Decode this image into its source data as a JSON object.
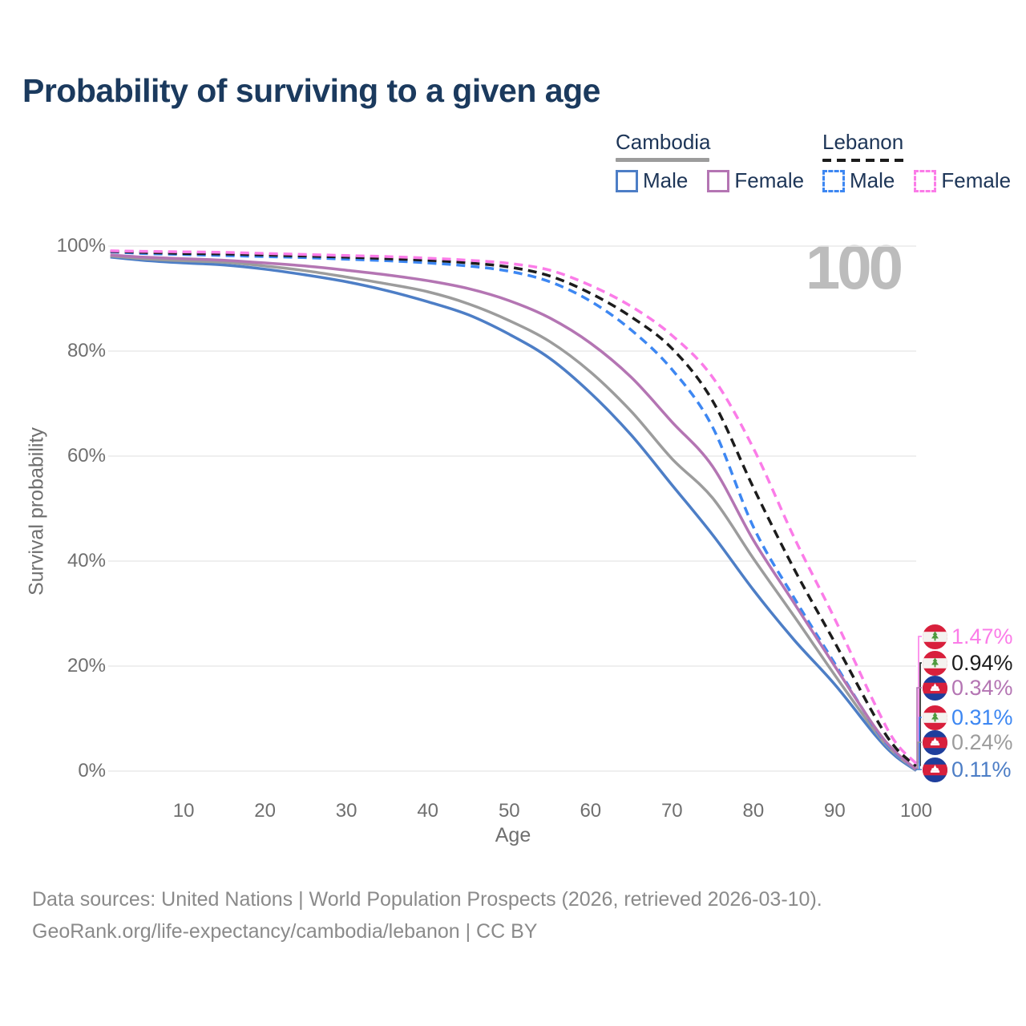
{
  "title": "Probability of surviving to a given age",
  "legend": {
    "groups": [
      {
        "country": "Cambodia",
        "style": "solid",
        "header_line_color": "#9c9c9c",
        "items": [
          {
            "label": "Male",
            "color": "#4d7ec6"
          },
          {
            "label": "Female",
            "color": "#b475b3"
          }
        ]
      },
      {
        "country": "Lebanon",
        "style": "dashed",
        "header_line_color": "#1c1c1c",
        "items": [
          {
            "label": "Male",
            "color": "#3d87f2"
          },
          {
            "label": "Female",
            "color": "#fb7ce8"
          }
        ]
      }
    ]
  },
  "chart_data": {
    "type": "line",
    "title": "Probability of surviving to a given age",
    "xlabel": "Age",
    "ylabel": "Survival probability",
    "age_counter": "100",
    "xlim": [
      1,
      100
    ],
    "ylim": [
      0,
      100
    ],
    "grid": "horizontal",
    "x_ticks": [
      10,
      20,
      30,
      40,
      50,
      60,
      70,
      80,
      90,
      100
    ],
    "y_ticks": [
      0,
      20,
      40,
      60,
      80,
      100
    ],
    "y_suffix": "%",
    "ages": [
      1,
      5,
      10,
      15,
      20,
      25,
      30,
      35,
      40,
      45,
      50,
      55,
      60,
      65,
      70,
      75,
      80,
      85,
      90,
      95,
      97.5,
      100
    ],
    "series": [
      {
        "name": "Lebanon Female",
        "country": "Lebanon",
        "sex": "female",
        "color": "#fb7ce8",
        "dashed": true,
        "flag": "lebanon",
        "end_label": "1.47%",
        "end_value": 1.47,
        "values": [
          99.1,
          99.0,
          98.9,
          98.8,
          98.6,
          98.4,
          98.2,
          98.0,
          97.7,
          97.3,
          96.7,
          95.4,
          92.5,
          88.5,
          83.0,
          75.0,
          61.5,
          44.5,
          29.0,
          12.5,
          5.4,
          1.47
        ]
      },
      {
        "name": "Lebanon Both sexes",
        "country": "Lebanon",
        "sex": "total",
        "color": "#1c1c1c",
        "dashed": true,
        "flag": "lebanon",
        "end_label": "0.94%",
        "end_value": 0.94,
        "values": [
          99.0,
          98.8,
          98.6,
          98.5,
          98.3,
          98.1,
          97.9,
          97.6,
          97.3,
          96.8,
          96.0,
          94.3,
          91.0,
          86.5,
          80.5,
          70.5,
          54.0,
          38.5,
          24.5,
          10.2,
          4.4,
          0.94
        ]
      },
      {
        "name": "Cambodia Female",
        "country": "Cambodia",
        "sex": "female",
        "color": "#b475b3",
        "dashed": false,
        "flag": "cambodia",
        "end_label": "0.34%",
        "end_value": 0.34,
        "values": [
          98.3,
          97.9,
          97.6,
          97.3,
          96.8,
          96.2,
          95.4,
          94.5,
          93.4,
          91.9,
          89.6,
          86.3,
          81.5,
          75.0,
          66.5,
          58.0,
          44.0,
          32.0,
          20.0,
          8.2,
          3.6,
          0.34
        ]
      },
      {
        "name": "Lebanon Male",
        "country": "Lebanon",
        "sex": "male",
        "color": "#3d87f2",
        "dashed": true,
        "flag": "lebanon",
        "end_label": "0.31%",
        "end_value": 0.31,
        "values": [
          98.9,
          98.6,
          98.4,
          98.2,
          98.0,
          97.8,
          97.5,
          97.2,
          96.8,
          96.2,
          95.2,
          93.2,
          89.5,
          84.0,
          76.5,
          65.5,
          46.5,
          33.0,
          20.5,
          8.0,
          3.4,
          0.31
        ]
      },
      {
        "name": "Cambodia Both sexes",
        "country": "Cambodia",
        "sex": "total",
        "color": "#9c9c9c",
        "dashed": false,
        "flag": "cambodia",
        "end_label": "0.24%",
        "end_value": 0.24,
        "values": [
          98.1,
          97.6,
          97.2,
          96.9,
          96.2,
          95.3,
          94.1,
          92.8,
          91.3,
          89.0,
          85.8,
          81.8,
          76.0,
          68.5,
          59.5,
          52.0,
          40.5,
          29.5,
          18.3,
          7.5,
          3.2,
          0.24
        ]
      },
      {
        "name": "Cambodia Male",
        "country": "Cambodia",
        "sex": "male",
        "color": "#4d7ec6",
        "dashed": false,
        "flag": "cambodia",
        "end_label": "0.11%",
        "end_value": 0.11,
        "values": [
          97.9,
          97.3,
          96.8,
          96.4,
          95.6,
          94.5,
          93.2,
          91.5,
          89.4,
          86.9,
          83.2,
          78.6,
          72.0,
          64.0,
          54.5,
          45.0,
          34.5,
          25.0,
          16.5,
          6.8,
          2.8,
          0.11
        ]
      }
    ]
  },
  "footer": {
    "line1": "Data sources: United Nations | World Population Prospects (2026, retrieved 2026-03-10).",
    "line2": "GeoRank.org/life-expectancy/cambodia/lebanon | CC BY"
  }
}
